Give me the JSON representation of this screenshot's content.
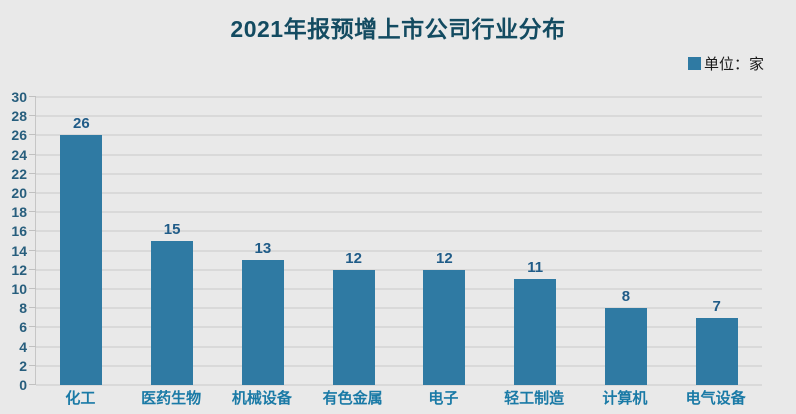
{
  "page": {
    "background": "#e9e9e9"
  },
  "header": {
    "title": "2021年报预增上市公司行业分布"
  },
  "legend": {
    "label": "单位：家"
  },
  "chart_data": {
    "type": "bar",
    "title": "2021年报预增上市公司行业分布",
    "legend_label": "单位：家",
    "legend_position": "top-right",
    "categories": [
      "化工",
      "医药生物",
      "机械设备",
      "有色金属",
      "电子",
      "轻工制造",
      "计算机",
      "电气设备"
    ],
    "values": [
      26,
      15,
      13,
      12,
      12,
      11,
      8,
      7
    ],
    "xlabel": "",
    "ylabel": "",
    "ylim": [
      0,
      30
    ],
    "ytick_step": 2,
    "yticks": [
      0,
      2,
      4,
      6,
      8,
      10,
      12,
      14,
      16,
      18,
      20,
      22,
      24,
      26,
      28,
      30
    ],
    "grid": true
  },
  "colors": {
    "bar": "#2f7aa3",
    "title": "#134b61",
    "y_tick_label": "#275e7d",
    "value_label": "#205c88",
    "x_tick_label": "#1a7aa6",
    "gridline": "#d9d9d9",
    "axis_line": "#c6c6c6",
    "legend_text": "#1a1a1a",
    "background": "#e9e9e9"
  }
}
